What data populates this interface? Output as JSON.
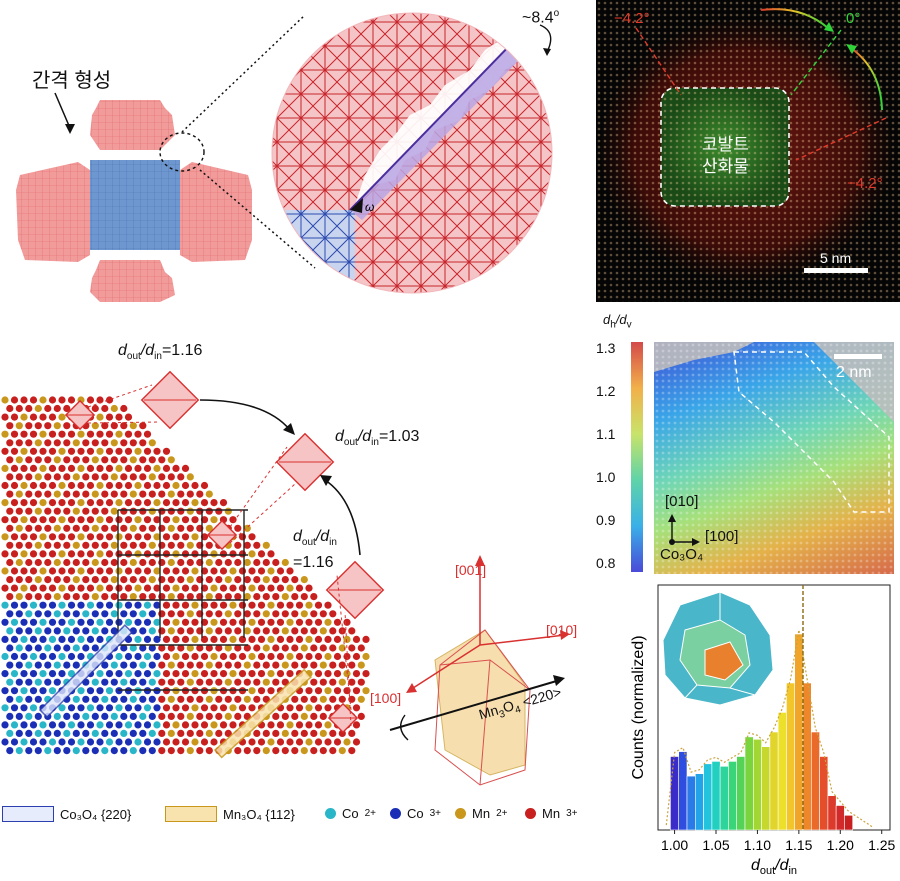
{
  "panel_a": {
    "gap_label": "간격 형성",
    "angle_label": "~8.4",
    "angle_sup": "o",
    "omega": "ω"
  },
  "panel_b": {
    "core_label_line1": "코발트",
    "core_label_line2": "산화물",
    "angle_left": "−4.2°",
    "angle_top": "0°",
    "angle_right": "−4.2°",
    "scale_bar": "5 nm"
  },
  "panel_c": {
    "ratio1": {
      "d": "d",
      "out": "out",
      "slash": "/d",
      "in": "in",
      "value": "=1.16"
    },
    "ratio2": {
      "value": "=1.03"
    },
    "ratio3": {
      "line2": "=1.16"
    },
    "axis_001": "[001]",
    "axis_010": "[010]",
    "axis_100": "[100]",
    "mn3o4_dir": "Mn",
    "mn3o4_sub": "3",
    "mn3o4_o": "O",
    "mn3o4_sub2": "4",
    "dir220": "<220>"
  },
  "legend": {
    "co3o4": "Co₃O₄ {220}",
    "mn3o4": "Mn₃O₄ {112}",
    "co2": "Co",
    "co2_sup": "2+",
    "co3": "Co",
    "co3_sup": "3+",
    "mn2": "Mn",
    "mn2_sup": "2+",
    "mn3": "Mn",
    "mn3_sup": "3+",
    "colors": {
      "co2": "#29b6c9",
      "co3": "#1a2fb5",
      "mn2": "#c9971c",
      "mn3": "#c8201e"
    }
  },
  "panel_d": {
    "title_d": "d",
    "title_h": "h",
    "title_slash": "/d",
    "title_v": "v",
    "ticks": [
      "1.3",
      "1.2",
      "1.1",
      "1.0",
      "0.9",
      "0.8"
    ],
    "scale_bar": "2 nm",
    "dir_010": "[010]",
    "dir_100": "[100]",
    "crystal": "Co₃O₄"
  },
  "chart_data": {
    "type": "bar",
    "title": "",
    "xlabel": "dout/din",
    "ylabel": "Counts (normalized)",
    "xlim": [
      0.98,
      1.26
    ],
    "x_ticks": [
      "1.00",
      "1.05",
      "1.10",
      "1.15",
      "1.20",
      "1.25"
    ],
    "bin_centers": [
      1.0,
      1.01,
      1.02,
      1.03,
      1.04,
      1.05,
      1.06,
      1.07,
      1.08,
      1.09,
      1.1,
      1.11,
      1.12,
      1.13,
      1.14,
      1.15,
      1.16,
      1.17,
      1.18,
      1.19,
      1.2,
      1.21
    ],
    "values": [
      0.3,
      0.32,
      0.22,
      0.23,
      0.27,
      0.28,
      0.26,
      0.28,
      0.3,
      0.38,
      0.37,
      0.34,
      0.4,
      0.48,
      0.6,
      0.8,
      0.6,
      0.4,
      0.3,
      0.14,
      0.1,
      0.06
    ],
    "vertical_line_x": 1.155
  }
}
